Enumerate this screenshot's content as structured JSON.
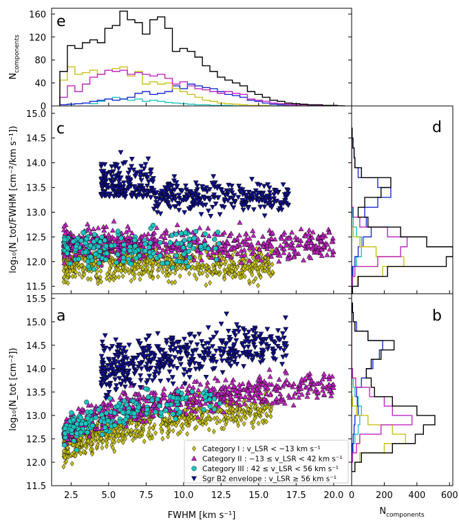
{
  "colors": {
    "cat1": "#c8c218",
    "cat2": "#c024c0",
    "cat3": "#1ec4c0",
    "cat4": "#10108a",
    "total": "#000000",
    "hist_cat1": "#c8c218",
    "hist_cat2": "#c024c0",
    "hist_cat3": "#1ec4c0",
    "hist_cat4": "#1a2ad6"
  },
  "chart_data": [
    {
      "panel": "e",
      "type": "histogram",
      "ylabel": "N",
      "ylabel_sub": "components",
      "xlim": [
        1.2,
        21.2
      ],
      "ylim": [
        0,
        170
      ],
      "yticks": [
        0,
        40,
        80,
        120,
        160
      ],
      "bin_edges": [
        1.75,
        2.25,
        2.75,
        3.25,
        3.75,
        4.25,
        4.75,
        5.25,
        5.75,
        6.25,
        6.75,
        7.25,
        7.75,
        8.25,
        8.75,
        9.25,
        9.75,
        10.25,
        10.75,
        11.25,
        11.75,
        12.25,
        12.75,
        13.25,
        13.75,
        14.25,
        14.75,
        15.25,
        15.75,
        16.25,
        16.75,
        17.25,
        17.75,
        18.25,
        18.75,
        19.25,
        19.75,
        20.25,
        20.75
      ],
      "series": [
        {
          "key": "total",
          "values": [
            60,
            105,
            100,
            110,
            115,
            110,
            135,
            140,
            165,
            150,
            145,
            125,
            150,
            155,
            135,
            95,
            100,
            95,
            85,
            70,
            60,
            50,
            45,
            40,
            35,
            25,
            20,
            15,
            10,
            8,
            5,
            4,
            3,
            2,
            2,
            1,
            1,
            0
          ]
        },
        {
          "key": "cat1",
          "values": [
            45,
            68,
            55,
            58,
            62,
            55,
            62,
            65,
            68,
            52,
            60,
            38,
            42,
            38,
            40,
            30,
            25,
            20,
            15,
            10,
            8,
            5,
            4,
            3,
            2,
            1,
            1,
            1,
            0,
            0,
            0,
            0,
            0,
            0,
            0,
            0,
            0,
            0
          ]
        },
        {
          "key": "cat2",
          "values": [
            15,
            35,
            25,
            38,
            50,
            55,
            62,
            60,
            62,
            55,
            58,
            55,
            52,
            55,
            48,
            38,
            42,
            35,
            30,
            28,
            25,
            22,
            25,
            22,
            20,
            12,
            10,
            8,
            5,
            4,
            3,
            2,
            2,
            1,
            1,
            1,
            0,
            0
          ]
        },
        {
          "key": "cat3",
          "values": [
            2,
            3,
            4,
            5,
            4,
            8,
            12,
            15,
            12,
            10,
            12,
            8,
            10,
            8,
            6,
            5,
            4,
            3,
            2,
            2,
            1,
            1,
            1,
            0,
            0,
            0,
            0,
            0,
            0,
            0,
            0,
            0,
            0,
            0,
            0,
            0,
            0,
            0
          ]
        },
        {
          "key": "cat4",
          "values": [
            2,
            3,
            4,
            5,
            8,
            10,
            12,
            10,
            12,
            15,
            22,
            25,
            20,
            22,
            25,
            35,
            30,
            38,
            35,
            32,
            30,
            25,
            20,
            18,
            15,
            10,
            8,
            5,
            3,
            2,
            1,
            1,
            0,
            0,
            0,
            0,
            0,
            0
          ]
        }
      ]
    },
    {
      "panel": "c",
      "type": "scatter",
      "ylabel": "log₁₀(N_tot/FWHM [cm⁻²/km s⁻¹])",
      "xlim": [
        1.2,
        21.2
      ],
      "ylim": [
        11.35,
        15.15
      ],
      "yticks": [
        11.5,
        12.0,
        12.5,
        13.0,
        13.5,
        14.0,
        14.5,
        15.0
      ],
      "clouds": [
        {
          "key": "cat1",
          "x_range": [
            2.0,
            16.0
          ],
          "y_center": 11.95,
          "y_spread": 0.17,
          "count": 650
        },
        {
          "key": "cat2",
          "x_range": [
            2.0,
            20.0
          ],
          "y_center": 12.35,
          "y_spread": 0.16,
          "count": 600
        },
        {
          "key": "cat3",
          "x_range": [
            2.0,
            12.5
          ],
          "y_center": 12.3,
          "y_spread": 0.18,
          "count": 160
        },
        {
          "key": "cat4",
          "x_range": [
            4.5,
            17.0
          ],
          "y_center": 13.3,
          "y_spread": 0.25,
          "count": 480
        }
      ]
    },
    {
      "panel": "d",
      "type": "histogram-horizontal",
      "xlabel": "N",
      "xlabel_sub": "components",
      "xlim": [
        0,
        620
      ],
      "ylim": [
        11.35,
        15.15
      ],
      "bin_edges": [
        11.3,
        11.5,
        11.7,
        11.9,
        12.1,
        12.3,
        12.5,
        12.7,
        12.9,
        13.1,
        13.3,
        13.5,
        13.7,
        13.9,
        14.1,
        14.3,
        14.5,
        14.7
      ],
      "series": [
        {
          "key": "total",
          "values": [
            5,
            40,
            220,
            580,
            620,
            460,
            300,
            100,
            40,
            80,
            180,
            240,
            60,
            20,
            15,
            8,
            3
          ]
        },
        {
          "key": "cat1",
          "values": [
            5,
            35,
            190,
            320,
            150,
            50,
            10,
            0,
            0,
            0,
            0,
            0,
            0,
            0,
            0,
            0,
            0
          ]
        },
        {
          "key": "cat2",
          "values": [
            0,
            5,
            20,
            160,
            300,
            340,
            220,
            50,
            10,
            0,
            0,
            0,
            0,
            0,
            0,
            0,
            0
          ]
        },
        {
          "key": "cat3",
          "values": [
            0,
            2,
            10,
            30,
            60,
            60,
            30,
            10,
            5,
            0,
            0,
            0,
            0,
            0,
            0,
            0,
            0
          ]
        },
        {
          "key": "cat4",
          "values": [
            0,
            0,
            5,
            20,
            40,
            70,
            120,
            90,
            80,
            160,
            240,
            160,
            40,
            20,
            15,
            8,
            3
          ]
        }
      ]
    },
    {
      "panel": "a",
      "type": "scatter",
      "xlabel": "FWHM [km s⁻¹]",
      "ylabel": "log₁₀(N_tot [cm⁻²])",
      "xlim": [
        1.2,
        21.2
      ],
      "ylim": [
        11.5,
        15.6
      ],
      "xticks": [
        2.5,
        5.0,
        7.5,
        10.0,
        12.5,
        15.0,
        17.5,
        20.0
      ],
      "yticks": [
        11.5,
        12.0,
        12.5,
        13.0,
        13.5,
        14.0,
        14.5,
        15.0,
        15.5
      ],
      "clouds": [
        {
          "key": "cat1",
          "x_range": [
            2.0,
            16.0
          ],
          "trend": "log",
          "y_offset": 11.95,
          "y_spread": 0.17,
          "count": 650
        },
        {
          "key": "cat2",
          "x_range": [
            2.0,
            20.0
          ],
          "trend": "log",
          "y_offset": 12.35,
          "y_spread": 0.16,
          "count": 600
        },
        {
          "key": "cat3",
          "x_range": [
            2.0,
            12.5
          ],
          "trend": "log",
          "y_offset": 12.3,
          "y_spread": 0.18,
          "count": 160
        },
        {
          "key": "cat4",
          "x_range": [
            4.5,
            17.0
          ],
          "trend": "log",
          "y_offset": 13.3,
          "y_spread": 0.25,
          "count": 480
        }
      ]
    },
    {
      "panel": "b",
      "type": "histogram-horizontal",
      "xlabel": "N",
      "xlabel_sub": "components",
      "xlim": [
        0,
        620
      ],
      "xticks": [
        0,
        200,
        400,
        600
      ],
      "ylim": [
        11.5,
        15.6
      ],
      "bin_edges": [
        11.8,
        12.0,
        12.2,
        12.4,
        12.6,
        12.8,
        13.0,
        13.2,
        13.4,
        13.6,
        13.8,
        14.0,
        14.2,
        14.4,
        14.6,
        14.8,
        15.0,
        15.2,
        15.4
      ],
      "series": [
        {
          "key": "total",
          "values": [
            20,
            60,
            250,
            390,
            440,
            510,
            400,
            250,
            140,
            120,
            90,
            120,
            180,
            260,
            100,
            20,
            10,
            5
          ]
        },
        {
          "key": "cat1",
          "values": [
            20,
            50,
            200,
            330,
            250,
            100,
            30,
            5,
            0,
            0,
            0,
            0,
            0,
            0,
            0,
            0,
            0,
            0
          ]
        },
        {
          "key": "cat2",
          "values": [
            0,
            5,
            30,
            50,
            180,
            370,
            250,
            200,
            110,
            25,
            5,
            0,
            0,
            0,
            0,
            0,
            0,
            0
          ]
        },
        {
          "key": "cat3",
          "values": [
            0,
            2,
            10,
            20,
            40,
            50,
            60,
            40,
            20,
            10,
            5,
            0,
            0,
            0,
            0,
            0,
            0,
            0
          ]
        },
        {
          "key": "cat4",
          "values": [
            0,
            0,
            5,
            10,
            15,
            20,
            40,
            35,
            30,
            60,
            90,
            130,
            170,
            190,
            100,
            30,
            10,
            5
          ]
        }
      ]
    }
  ],
  "panel_letters": {
    "e": "e",
    "c": "c",
    "d": "d",
    "a": "a",
    "b": "b"
  },
  "legend": {
    "items": [
      {
        "key": "cat1",
        "marker": "diamond",
        "label": "Category I :  v_LSR < −13 km s⁻¹"
      },
      {
        "key": "cat2",
        "marker": "triangle-up",
        "label": "Category II :  −13 ≤ v_LSR < 42 km s⁻¹"
      },
      {
        "key": "cat3",
        "marker": "circle",
        "label": "Category III :  42 ≤ v_LSR < 56 km s⁻¹"
      },
      {
        "key": "cat4",
        "marker": "triangle-down",
        "label": "Sgr B2 envelope :  v_LSR ≥ 56 km s⁻¹"
      }
    ]
  }
}
